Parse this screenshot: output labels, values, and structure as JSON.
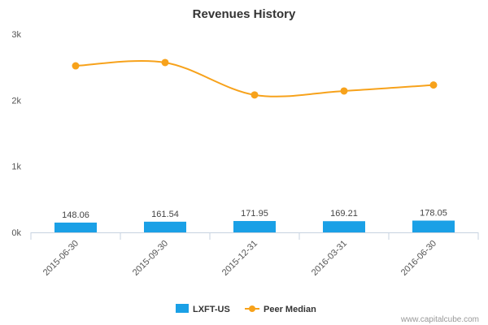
{
  "chart_data": {
    "type": "bar",
    "title": "Revenues History",
    "categories": [
      "2015-06-30",
      "2015-09-30",
      "2015-12-31",
      "2016-03-31",
      "2016-06-30"
    ],
    "y_ticks": [
      "0k",
      "1k",
      "2k",
      "3k"
    ],
    "ylim": [
      0,
      3000
    ],
    "xlabel": "",
    "ylabel": "",
    "grid": false,
    "legend_position": "bottom-center",
    "series": [
      {
        "name": "LXFT-US",
        "type": "bar",
        "color": "#1aa0e6",
        "values": [
          148.06,
          161.54,
          171.95,
          169.21,
          178.05
        ],
        "value_labels": [
          "148.06",
          "161.54",
          "171.95",
          "169.21",
          "178.05"
        ]
      },
      {
        "name": "Peer Median",
        "type": "line",
        "color": "#f7a21b",
        "values": [
          2520,
          2570,
          2080,
          2140,
          2230
        ]
      }
    ]
  },
  "credit": "www.capitalcube.com"
}
